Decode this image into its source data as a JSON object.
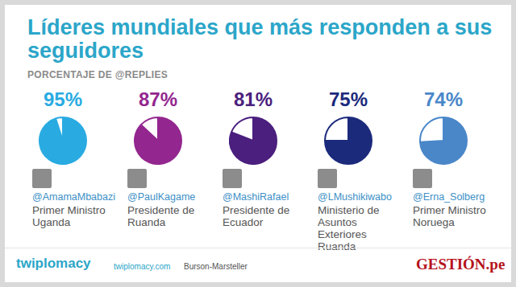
{
  "header": {
    "title": "Líderes mundiales que más responden a sus seguidores",
    "subtitle": "PORCENTAJE DE @REPLIES"
  },
  "chart_data": [
    {
      "type": "pie",
      "title": "@AmamaMbabazi",
      "subtitle": "Primer Ministro Uganda",
      "values": [
        95,
        5
      ],
      "value_labels": [
        "95%",
        null
      ],
      "colors": [
        "#29abe2",
        "#ffffff"
      ],
      "data_labels": true
    },
    {
      "type": "pie",
      "title": "@PaulKagame",
      "subtitle": "Presidente de Ruanda",
      "values": [
        87,
        13
      ],
      "value_labels": [
        "87%",
        null
      ],
      "colors": [
        "#93278f",
        "#ffffff"
      ],
      "data_labels": true
    },
    {
      "type": "pie",
      "title": "@MashiRafael",
      "subtitle": "Presidente de Ecuador",
      "values": [
        81,
        19
      ],
      "value_labels": [
        "81%",
        null
      ],
      "colors": [
        "#4b1f7e",
        "#ffffff"
      ],
      "data_labels": true
    },
    {
      "type": "pie",
      "title": "@LMushikiwabo",
      "subtitle": "Ministerio de Asuntos Exteriores Ruanda",
      "values": [
        75,
        25
      ],
      "value_labels": [
        "75%",
        null
      ],
      "colors": [
        "#1c2a7c",
        "#ffffff"
      ],
      "data_labels": true
    },
    {
      "type": "pie",
      "title": "@Erna_Solberg",
      "subtitle": "Primer Ministro Noruega",
      "values": [
        74,
        26
      ],
      "value_labels": [
        "74%",
        null
      ],
      "colors": [
        "#4a87c9",
        "#ffffff"
      ],
      "data_labels": true
    }
  ],
  "footer": {
    "brand": "twiplomacy",
    "url": "twiplomacy.com",
    "partner": "Burson-Marsteller",
    "publisher": "GESTIÓN.pe"
  }
}
